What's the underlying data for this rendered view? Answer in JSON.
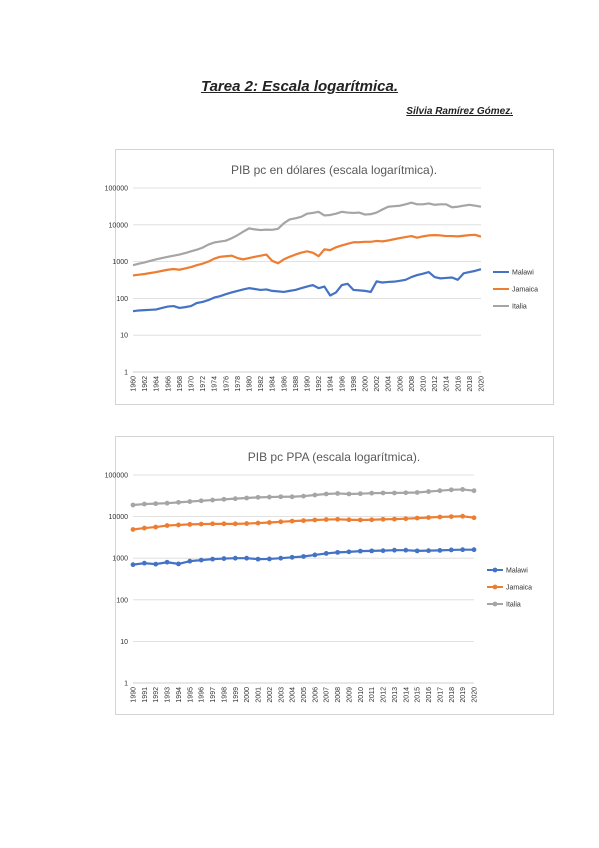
{
  "document": {
    "title": "Tarea 2: Escala logarítmica.",
    "author": "Silvia Ramírez Gómez."
  },
  "colors": {
    "Malawi": "#4472c4",
    "Jamaica": "#ed7d31",
    "Italia": "#a5a5a5"
  },
  "chart_data": [
    {
      "type": "line",
      "title": "PIB pc en dólares (escala logarítmica).",
      "yscale": "log",
      "ylim": [
        1,
        100000
      ],
      "yticks": [
        "1",
        "10",
        "100",
        "1000",
        "10000",
        "100000"
      ],
      "legend_position": "right",
      "markers": false,
      "x": [
        1960,
        1961,
        1962,
        1963,
        1964,
        1965,
        1966,
        1967,
        1968,
        1969,
        1970,
        1971,
        1972,
        1973,
        1974,
        1975,
        1976,
        1977,
        1978,
        1979,
        1980,
        1981,
        1982,
        1983,
        1984,
        1985,
        1986,
        1987,
        1988,
        1989,
        1990,
        1991,
        1992,
        1993,
        1994,
        1995,
        1996,
        1997,
        1998,
        1999,
        2000,
        2001,
        2002,
        2003,
        2004,
        2005,
        2006,
        2007,
        2008,
        2009,
        2010,
        2011,
        2012,
        2013,
        2014,
        2015,
        2016,
        2017,
        2018,
        2019,
        2020
      ],
      "xtick_labels": [
        "1960",
        "1962",
        "1964",
        "1966",
        "1968",
        "1970",
        "1972",
        "1974",
        "1976",
        "1978",
        "1980",
        "1982",
        "1984",
        "1986",
        "1988",
        "1990",
        "1992",
        "1994",
        "1996",
        "1998",
        "2000",
        "2002",
        "2004",
        "2006",
        "2008",
        "2010",
        "2012",
        "2014",
        "2016",
        "2018",
        "2020"
      ],
      "series": [
        {
          "name": "Malawi",
          "values": [
            45,
            47,
            48,
            49,
            50,
            55,
            60,
            62,
            55,
            58,
            62,
            75,
            80,
            90,
            105,
            115,
            130,
            145,
            160,
            175,
            190,
            180,
            170,
            175,
            160,
            155,
            150,
            160,
            170,
            190,
            210,
            230,
            190,
            210,
            120,
            145,
            230,
            250,
            170,
            165,
            160,
            150,
            290,
            270,
            280,
            285,
            300,
            320,
            380,
            430,
            470,
            520,
            380,
            350,
            360,
            370,
            320,
            480,
            520,
            560,
            620
          ]
        },
        {
          "name": "Jamaica",
          "values": [
            420,
            440,
            460,
            490,
            520,
            560,
            600,
            630,
            600,
            650,
            710,
            800,
            880,
            1000,
            1200,
            1350,
            1400,
            1450,
            1250,
            1150,
            1250,
            1350,
            1450,
            1550,
            1050,
            900,
            1150,
            1350,
            1550,
            1750,
            1900,
            1750,
            1400,
            2150,
            2050,
            2450,
            2750,
            3050,
            3350,
            3350,
            3450,
            3450,
            3650,
            3550,
            3750,
            4050,
            4350,
            4650,
            4950,
            4450,
            4850,
            5150,
            5250,
            5150,
            4950,
            4950,
            4850,
            5050,
            5250,
            5350,
            4750
          ]
        },
        {
          "name": "Italia",
          "values": [
            800,
            880,
            950,
            1050,
            1150,
            1250,
            1350,
            1450,
            1550,
            1700,
            1900,
            2100,
            2400,
            2900,
            3300,
            3500,
            3700,
            4300,
            5200,
            6500,
            8000,
            7500,
            7200,
            7400,
            7300,
            7800,
            11000,
            14000,
            15000,
            16500,
            20000,
            21000,
            22500,
            18000,
            18500,
            20000,
            22500,
            21500,
            21000,
            21500,
            19000,
            19500,
            21500,
            26000,
            31000,
            32000,
            33000,
            36000,
            40000,
            36000,
            36000,
            38000,
            35000,
            36000,
            36000,
            30000,
            31000,
            33000,
            35000,
            33000,
            31000
          ]
        }
      ]
    },
    {
      "type": "line",
      "title": "PIB pc PPA (escala logarítmica).",
      "yscale": "log",
      "ylim": [
        1,
        100000
      ],
      "yticks": [
        "1",
        "10",
        "100",
        "1000",
        "10000",
        "100000"
      ],
      "legend_position": "right",
      "markers": true,
      "x": [
        1990,
        1991,
        1992,
        1993,
        1994,
        1995,
        1996,
        1997,
        1998,
        1999,
        2000,
        2001,
        2002,
        2003,
        2004,
        2005,
        2006,
        2007,
        2008,
        2009,
        2010,
        2011,
        2012,
        2013,
        2014,
        2015,
        2016,
        2017,
        2018,
        2019,
        2020
      ],
      "xtick_labels": [
        "1990",
        "1991",
        "1992",
        "1993",
        "1994",
        "1995",
        "1996",
        "1997",
        "1998",
        "1999",
        "2000",
        "2001",
        "2002",
        "2003",
        "2004",
        "2005",
        "2006",
        "2007",
        "2008",
        "2009",
        "2010",
        "2011",
        "2012",
        "2013",
        "2014",
        "2015",
        "2016",
        "2017",
        "2018",
        "2019",
        "2020"
      ],
      "series": [
        {
          "name": "Malawi",
          "values": [
            700,
            760,
            720,
            800,
            730,
            850,
            900,
            950,
            980,
            1000,
            1000,
            950,
            960,
            1000,
            1050,
            1100,
            1200,
            1300,
            1380,
            1420,
            1480,
            1500,
            1520,
            1560,
            1560,
            1500,
            1520,
            1540,
            1580,
            1600,
            1600
          ]
        },
        {
          "name": "Jamaica",
          "values": [
            4900,
            5300,
            5600,
            6100,
            6300,
            6500,
            6600,
            6700,
            6700,
            6700,
            6800,
            7000,
            7200,
            7500,
            7800,
            8000,
            8300,
            8500,
            8600,
            8400,
            8300,
            8400,
            8600,
            8700,
            8900,
            9200,
            9500,
            9800,
            10000,
            10200,
            9400
          ]
        },
        {
          "name": "Italia",
          "values": [
            19000,
            20000,
            20500,
            21000,
            22000,
            23000,
            24000,
            25000,
            26000,
            27000,
            28000,
            29000,
            29500,
            30000,
            30000,
            31000,
            33000,
            35000,
            36000,
            35000,
            35500,
            36500,
            37000,
            37000,
            37500,
            38000,
            40000,
            42000,
            44000,
            45000,
            42000
          ]
        }
      ]
    }
  ]
}
